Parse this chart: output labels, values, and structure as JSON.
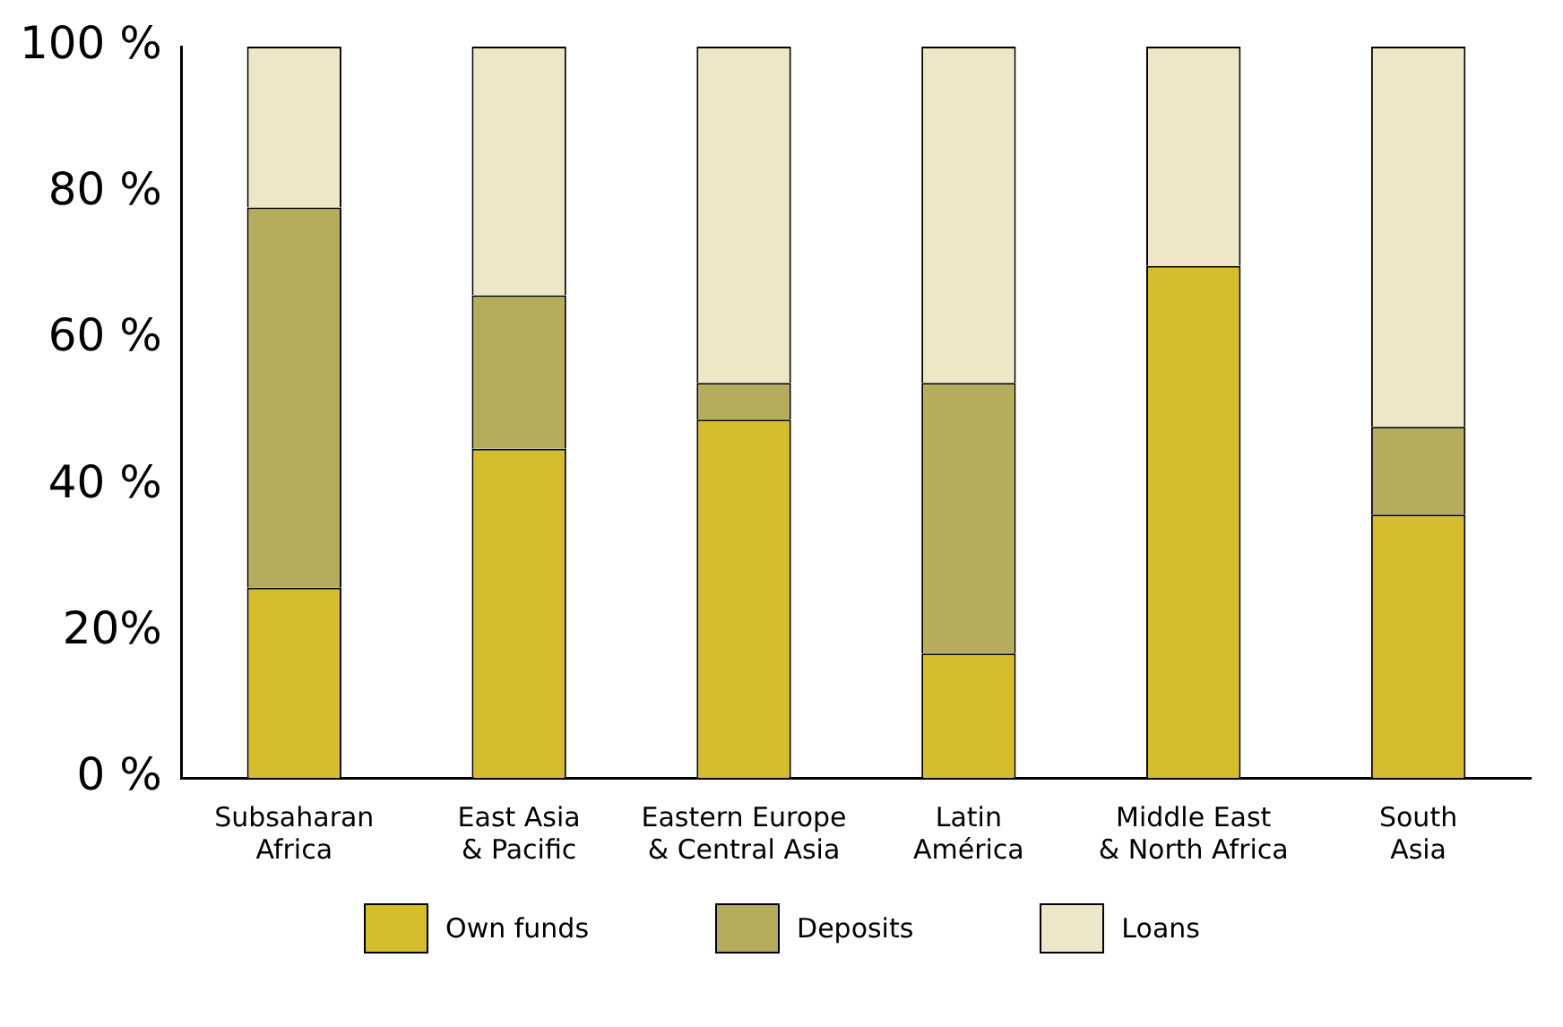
{
  "chart_data": {
    "type": "bar",
    "stacked": true,
    "categories": [
      "Subsaharan Africa",
      "East Asia & Pacific",
      "Eastern Europe & Central Asia",
      "Latin América",
      "Middle East & North Africa",
      "South Asia"
    ],
    "series": [
      {
        "name": "Own funds",
        "color": "#d4bc2c",
        "values": [
          26,
          45,
          49,
          17,
          70,
          36
        ]
      },
      {
        "name": "Deposits",
        "color": "#b5ad5c",
        "values": [
          52,
          21,
          5,
          37,
          0,
          12
        ]
      },
      {
        "name": "Loans",
        "color": "#ede7c8",
        "values": [
          22,
          34,
          46,
          46,
          30,
          52
        ]
      }
    ],
    "ylim": [
      0,
      100
    ],
    "yticks": [
      {
        "value": 0,
        "label": "0 %"
      },
      {
        "value": 20,
        "label": "20%"
      },
      {
        "value": 40,
        "label": "40 %"
      },
      {
        "value": 60,
        "label": "60 %"
      },
      {
        "value": 80,
        "label": "80 %"
      },
      {
        "value": 100,
        "label": "100 %"
      }
    ],
    "grid": false,
    "legend": "bottom"
  }
}
